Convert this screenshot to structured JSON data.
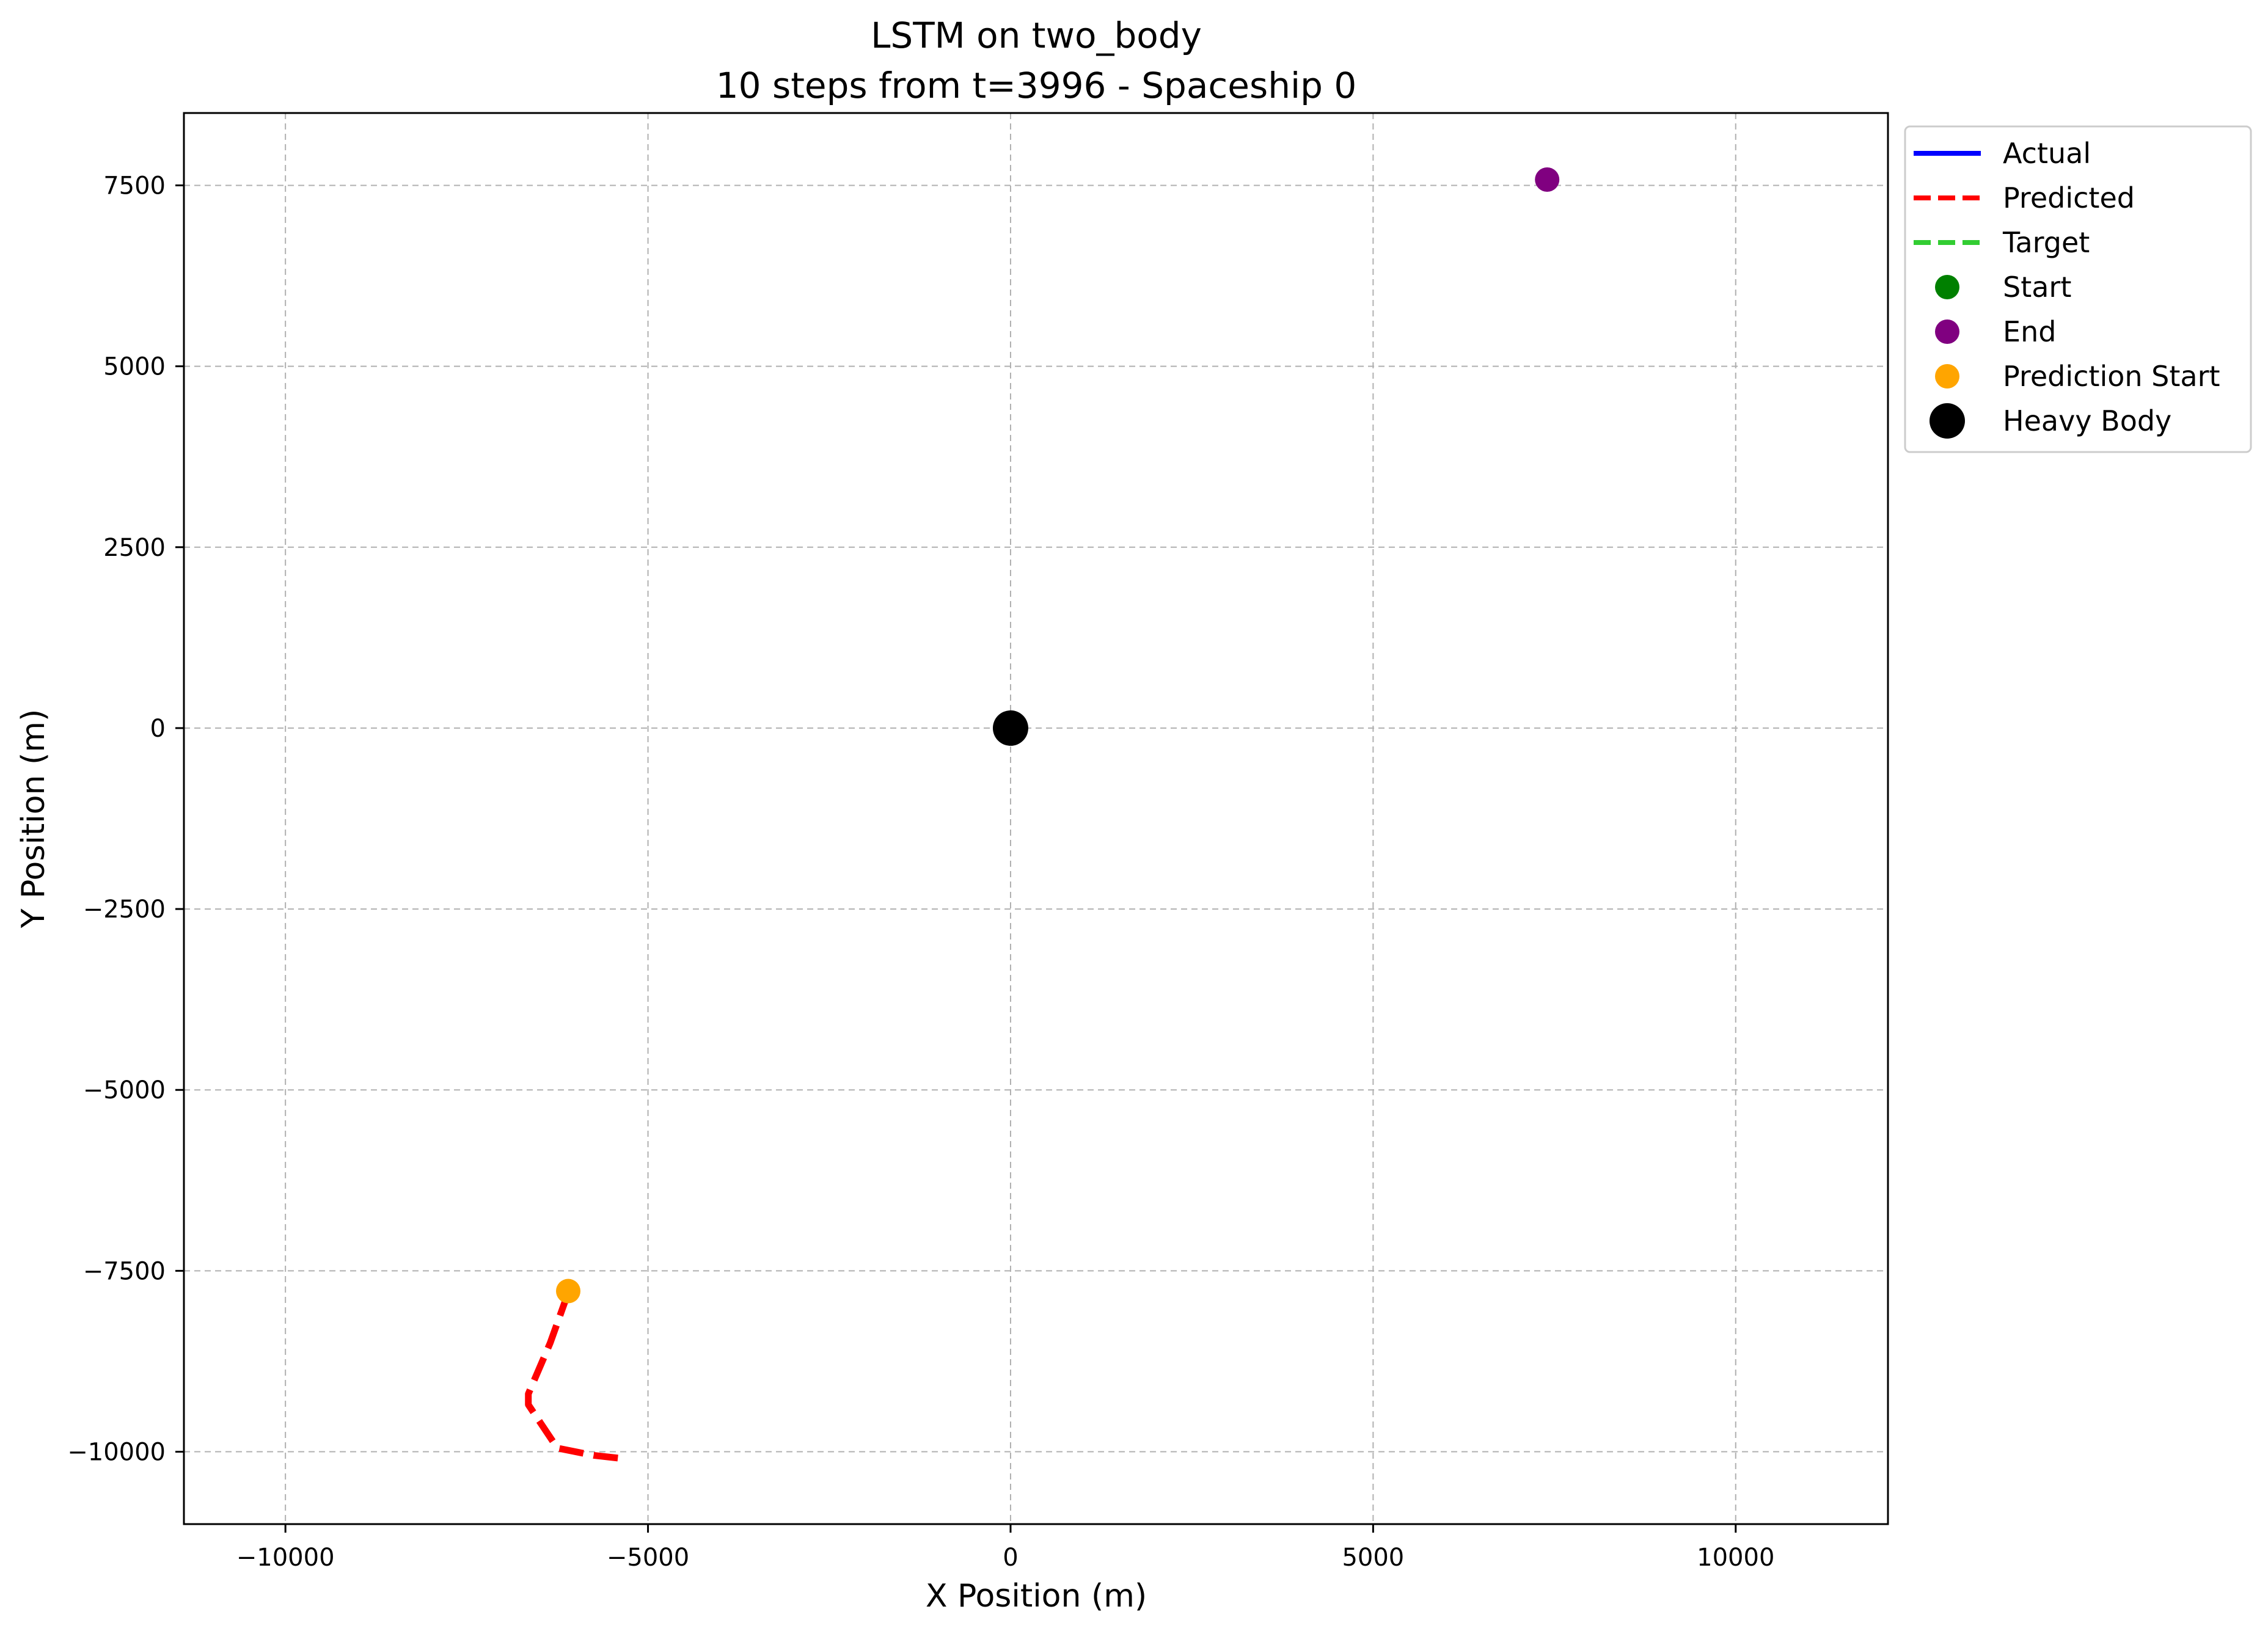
{
  "chart_data": {
    "type": "line",
    "title": "LSTM on two_body",
    "subtitle": "10 steps from t=3996 - Spaceship 0",
    "xlabel": "X Position (m)",
    "ylabel": "Y Position (m)",
    "xlim": [
      -11400,
      12100
    ],
    "ylim": [
      -11000,
      8500
    ],
    "xticks": [
      -10000,
      -5000,
      0,
      5000,
      10000
    ],
    "xtick_labels": [
      "−10000",
      "−5000",
      "0",
      "5000",
      "10000"
    ],
    "yticks": [
      7500,
      5000,
      2500,
      0,
      -2500,
      -5000,
      -7500,
      -10000
    ],
    "ytick_labels": [
      "7500",
      "5000",
      "2500",
      "0",
      "−2500",
      "−5000",
      "−7500",
      "−10000"
    ],
    "grid": true,
    "legend_position": "outside-upper-right",
    "series": [
      {
        "name": "Predicted",
        "style": "dashed",
        "color": "#ff0000",
        "x": [
          -6100,
          -6350,
          -6650,
          -6650,
          -6250,
          -5750,
          -5300
        ],
        "y": [
          -7800,
          -8500,
          -9200,
          -9350,
          -9950,
          -10050,
          -10100
        ]
      }
    ],
    "markers": [
      {
        "name": "End",
        "color": "#800080",
        "x": 7400,
        "y": 7580,
        "size": "medium"
      },
      {
        "name": "Prediction Start",
        "color": "#ffa500",
        "x": -6100,
        "y": -7780,
        "size": "medium"
      },
      {
        "name": "Heavy Body",
        "color": "#000000",
        "x": 0,
        "y": 0,
        "size": "large"
      }
    ],
    "legend": [
      {
        "label": "Actual",
        "kind": "line",
        "color": "#0000ff",
        "style": "solid"
      },
      {
        "label": "Predicted",
        "kind": "line",
        "color": "#ff0000",
        "style": "dashed"
      },
      {
        "label": "Target",
        "kind": "line",
        "color": "#32cd32",
        "style": "dashed"
      },
      {
        "label": "Start",
        "kind": "marker",
        "color": "#008000",
        "size": "medium"
      },
      {
        "label": "End",
        "kind": "marker",
        "color": "#800080",
        "size": "medium"
      },
      {
        "label": "Prediction Start",
        "kind": "marker",
        "color": "#ffa500",
        "size": "medium"
      },
      {
        "label": "Heavy Body",
        "kind": "marker",
        "color": "#000000",
        "size": "large"
      }
    ]
  }
}
